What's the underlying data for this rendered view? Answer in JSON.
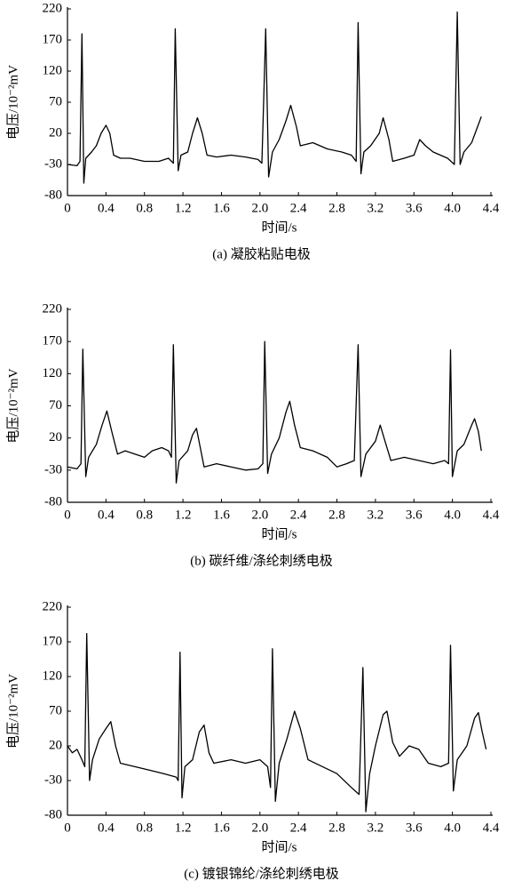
{
  "chart_data": [
    {
      "type": "line",
      "caption": "(a) 凝胶粘贴电极",
      "xlabel": "时间/s",
      "ylabel": "电压/10⁻²mV",
      "color": "#000000",
      "xlim": [
        0,
        4.4
      ],
      "ylim": [
        -80,
        220
      ],
      "xticks": [
        0,
        0.4,
        0.8,
        1.2,
        1.6,
        {
          "value": 2,
          "label": "2.0"
        },
        2.4,
        2.8,
        3.2,
        3.6,
        {
          "value": 4,
          "label": "4.0"
        },
        4.4
      ],
      "yticks": [
        220,
        170,
        120,
        70,
        20,
        -30,
        -80
      ],
      "x": [
        0,
        0.1,
        0.13,
        0.15,
        0.17,
        0.19,
        0.25,
        0.3,
        0.35,
        0.4,
        0.44,
        0.48,
        0.55,
        0.65,
        0.8,
        0.95,
        1.05,
        1.1,
        1.12,
        1.15,
        1.18,
        1.25,
        1.3,
        1.35,
        1.4,
        1.45,
        1.55,
        1.7,
        1.85,
        1.98,
        2.02,
        2.06,
        2.09,
        2.13,
        2.2,
        2.27,
        2.32,
        2.38,
        2.42,
        2.55,
        2.7,
        2.85,
        2.95,
        3.0,
        3.02,
        3.05,
        3.08,
        3.15,
        3.24,
        3.28,
        3.34,
        3.38,
        3.5,
        3.6,
        3.66,
        3.72,
        3.8,
        3.95,
        4.02,
        4.05,
        4.08,
        4.12,
        4.2,
        4.3
      ],
      "values": [
        -30,
        -32,
        -25,
        180,
        -60,
        -20,
        -10,
        0,
        20,
        33,
        20,
        -15,
        -20,
        -20,
        -25,
        -25,
        -20,
        -28,
        188,
        -40,
        -15,
        -10,
        20,
        45,
        20,
        -15,
        -18,
        -15,
        -18,
        -22,
        -28,
        188,
        -50,
        -10,
        10,
        40,
        65,
        30,
        0,
        5,
        -5,
        -10,
        -15,
        -25,
        198,
        -45,
        -10,
        0,
        20,
        45,
        10,
        -25,
        -20,
        -15,
        10,
        0,
        -10,
        -20,
        -30,
        215,
        -30,
        -10,
        5,
        47
      ]
    },
    {
      "type": "line",
      "caption": "(b) 碳纤维/涤纶刺绣电极",
      "xlabel": "时间/s",
      "ylabel": "电压/10⁻²mV",
      "color": "#000000",
      "xlim": [
        0,
        4.4
      ],
      "ylim": [
        -80,
        220
      ],
      "xticks": [
        0,
        0.4,
        0.8,
        1.2,
        1.6,
        {
          "value": 2,
          "label": "2.0"
        },
        2.4,
        2.8,
        3.2,
        3.6,
        {
          "value": 4,
          "label": "4.0"
        },
        4.4
      ],
      "yticks": [
        220,
        170,
        120,
        70,
        20,
        -30,
        -80
      ],
      "x": [
        0,
        0.1,
        0.14,
        0.16,
        0.19,
        0.22,
        0.3,
        0.36,
        0.41,
        0.46,
        0.52,
        0.6,
        0.7,
        0.8,
        0.88,
        0.98,
        1.05,
        1.08,
        1.1,
        1.13,
        1.16,
        1.25,
        1.3,
        1.34,
        1.38,
        1.42,
        1.55,
        1.7,
        1.85,
        1.98,
        2.03,
        2.05,
        2.08,
        2.12,
        2.2,
        2.27,
        2.31,
        2.36,
        2.42,
        2.55,
        2.7,
        2.8,
        2.9,
        2.98,
        3.02,
        3.05,
        3.1,
        3.2,
        3.25,
        3.3,
        3.36,
        3.5,
        3.65,
        3.8,
        3.92,
        3.96,
        3.98,
        4.0,
        4.05,
        4.12,
        4.2,
        4.23,
        4.27,
        4.3
      ],
      "values": [
        -25,
        -28,
        -20,
        158,
        -40,
        -10,
        10,
        40,
        62,
        30,
        -5,
        0,
        -5,
        -10,
        0,
        5,
        0,
        -10,
        165,
        -50,
        -15,
        0,
        25,
        35,
        5,
        -25,
        -20,
        -25,
        -30,
        -28,
        -20,
        170,
        -35,
        -5,
        20,
        60,
        77,
        40,
        5,
        0,
        -10,
        -25,
        -20,
        -15,
        165,
        -40,
        -5,
        15,
        40,
        15,
        -15,
        -10,
        -15,
        -20,
        -15,
        -20,
        157,
        -40,
        0,
        10,
        40,
        50,
        30,
        0
      ]
    },
    {
      "type": "line",
      "caption": "(c) 镀银锦纶/涤纶刺绣电极",
      "xlabel": "时间/s",
      "ylabel": "电压/10⁻²mV",
      "color": "#000000",
      "xlim": [
        0,
        4.4
      ],
      "ylim": [
        -80,
        220
      ],
      "xticks": [
        0,
        0.4,
        0.8,
        1.2,
        1.6,
        {
          "value": 2,
          "label": "2.0"
        },
        2.4,
        2.8,
        3.2,
        3.6,
        {
          "value": 4,
          "label": "4.0"
        },
        4.4
      ],
      "yticks": [
        220,
        170,
        120,
        70,
        20,
        -30,
        -80
      ],
      "x": [
        0,
        0.05,
        0.1,
        0.15,
        0.18,
        0.2,
        0.23,
        0.26,
        0.33,
        0.4,
        0.45,
        0.5,
        0.55,
        0.7,
        0.85,
        1.0,
        1.13,
        1.15,
        1.17,
        1.19,
        1.22,
        1.3,
        1.37,
        1.42,
        1.47,
        1.52,
        1.7,
        1.85,
        2.0,
        2.08,
        2.11,
        2.13,
        2.16,
        2.2,
        2.28,
        2.36,
        2.42,
        2.5,
        2.65,
        2.8,
        2.95,
        3.03,
        3.07,
        3.1,
        3.14,
        3.2,
        3.28,
        3.32,
        3.38,
        3.45,
        3.55,
        3.65,
        3.75,
        3.88,
        3.96,
        3.98,
        4.01,
        4.05,
        4.15,
        4.23,
        4.27,
        4.31,
        4.35
      ],
      "values": [
        20,
        10,
        15,
        0,
        -10,
        182,
        -30,
        0,
        30,
        45,
        55,
        20,
        -5,
        -10,
        -15,
        -20,
        -25,
        -30,
        155,
        -55,
        -10,
        0,
        40,
        50,
        10,
        -5,
        0,
        -5,
        0,
        -10,
        -40,
        160,
        -60,
        -5,
        30,
        70,
        45,
        0,
        -10,
        -20,
        -40,
        -50,
        133,
        -75,
        -20,
        20,
        65,
        70,
        25,
        5,
        20,
        15,
        -5,
        -10,
        -5,
        165,
        -45,
        0,
        20,
        60,
        68,
        40,
        15
      ]
    }
  ]
}
